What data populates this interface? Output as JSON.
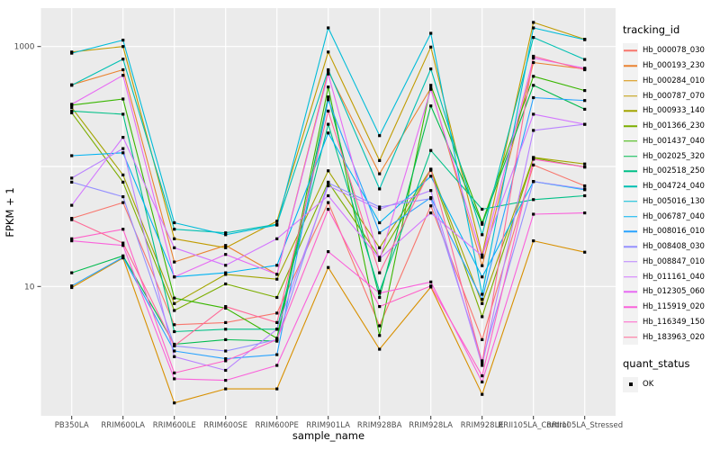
{
  "legend": {
    "tracking_title": "tracking_id",
    "quant_title": "quant_status",
    "quant_value": "OK",
    "key_bg": "#F2F2F2"
  },
  "chart_data": {
    "type": "line",
    "title": "",
    "xlabel": "sample_name",
    "ylabel": "FPKM + 1",
    "y_scale": "log10",
    "y_ticks_labeled": [
      "10",
      "1000"
    ],
    "y_gridlines": [
      10,
      100,
      1000
    ],
    "ylim": [
      0.84,
      2090
    ],
    "legend_position": "right",
    "panel_bg": "#EBEBEB",
    "grid_color": "#FFFFFF",
    "tick_color": "#333333",
    "tick_label_color": "#4D4D4D",
    "point_color": "#000000",
    "categories": [
      "PB350LA",
      "RRIM600LA",
      "RRIM600LE",
      "RRIM600SE",
      "RRIM600PE",
      "RRIM901LA",
      "RRIM928BA",
      "RRIM928LA",
      "RRIM928LE",
      "RRII105LA_Control",
      "RRII105LA_Stressed"
    ],
    "series": [
      {
        "name": "Hb_000078_030",
        "color": "#F8766D",
        "values": [
          37,
          50,
          4.8,
          5,
          6,
          50,
          4.7,
          47,
          3.6,
          103,
          69
        ]
      },
      {
        "name": "Hb_000193_230",
        "color": "#EA8331",
        "values": [
          480,
          640,
          16,
          22,
          12.6,
          620,
          87,
          450,
          14.9,
          735,
          650
        ]
      },
      {
        "name": "Hb_000284_010",
        "color": "#D89000",
        "values": [
          9.8,
          17.3,
          1.07,
          1.4,
          1.4,
          14.4,
          3,
          9.9,
          1.26,
          24,
          19.3
        ]
      },
      {
        "name": "Hb_000787_070",
        "color": "#C09B00",
        "values": [
          900,
          1000,
          25,
          21,
          35,
          900,
          112,
          990,
          18.3,
          1590,
          1150
        ]
      },
      {
        "name": "Hb_000933_140",
        "color": "#A3A500",
        "values": [
          310,
          85,
          7.2,
          12.6,
          11.5,
          92,
          21,
          95,
          7.2,
          119,
          105
        ]
      },
      {
        "name": "Hb_001366_230",
        "color": "#7CAE00",
        "values": [
          280,
          74,
          6.3,
          10.5,
          8.1,
          74,
          17.5,
          93,
          5.6,
          118,
          99
        ]
      },
      {
        "name": "Hb_001437_040",
        "color": "#39B600",
        "values": [
          325,
          365,
          8,
          6.6,
          3.7,
          460,
          3.9,
          475,
          34,
          565,
          430
        ]
      },
      {
        "name": "Hb_002025_320",
        "color": "#00BB4E",
        "values": [
          13,
          18,
          3.3,
          3.6,
          3.5,
          380,
          8.1,
          320,
          33,
          475,
          300
        ]
      },
      {
        "name": "Hb_002518_250",
        "color": "#00C087",
        "values": [
          290,
          273,
          4.2,
          4.4,
          4.4,
          225,
          9.1,
          136,
          44,
          53,
          57
        ]
      },
      {
        "name": "Hb_004724_040",
        "color": "#00C0B2",
        "values": [
          475,
          785,
          30,
          28,
          33,
          640,
          65,
          650,
          27,
          1190,
          780
        ]
      },
      {
        "name": "Hb_005016_130",
        "color": "#00BCD8",
        "values": [
          880,
          1130,
          34,
          27,
          32.5,
          1430,
          181,
          1290,
          8.6,
          1430,
          1140
        ]
      },
      {
        "name": "Hb_006787_040",
        "color": "#00B3F2",
        "values": [
          123,
          130,
          12,
          13,
          15,
          190,
          34,
          83,
          12,
          75,
          64
        ]
      },
      {
        "name": "Hb_008016_010",
        "color": "#29A3FF",
        "values": [
          10.1,
          17.5,
          2.9,
          2.5,
          2.7,
          360,
          28,
          55,
          7.8,
          375,
          355
        ]
      },
      {
        "name": "Hb_008408_030",
        "color": "#9590FF",
        "values": [
          74,
          56,
          3.2,
          2.9,
          3.6,
          73,
          46,
          54,
          2.4,
          75,
          65
        ]
      },
      {
        "name": "Hb_008847_010",
        "color": "#B983FF",
        "values": [
          80,
          141,
          2.6,
          2,
          4.4,
          69,
          44,
          63,
          2.2,
          200,
          225
        ]
      },
      {
        "name": "Hb_011161_040",
        "color": "#D376FF",
        "values": [
          47.5,
          175,
          21,
          15,
          25,
          57,
          17,
          41,
          18,
          273,
          225
        ]
      },
      {
        "name": "Hb_012305_060",
        "color": "#E76BF3",
        "values": [
          330,
          575,
          12,
          18.5,
          12.6,
          590,
          16.5,
          440,
          17.5,
          800,
          660
        ]
      },
      {
        "name": "Hb_115919_020",
        "color": "#FA62DB",
        "values": [
          24,
          22,
          1.7,
          1.65,
          2.2,
          19.5,
          8.8,
          10.9,
          1.6,
          40,
          41
        ]
      },
      {
        "name": "Hb_116349_150",
        "color": "#FF61C9",
        "values": [
          25,
          30,
          1.9,
          2.4,
          3.6,
          44,
          6.8,
          10.1,
          1.8,
          115,
          99
        ]
      },
      {
        "name": "Hb_183963_020",
        "color": "#FF6A98",
        "values": [
          36,
          23,
          3.2,
          6.8,
          5,
          290,
          13,
          95,
          2.3,
          830,
          640
        ]
      }
    ]
  }
}
